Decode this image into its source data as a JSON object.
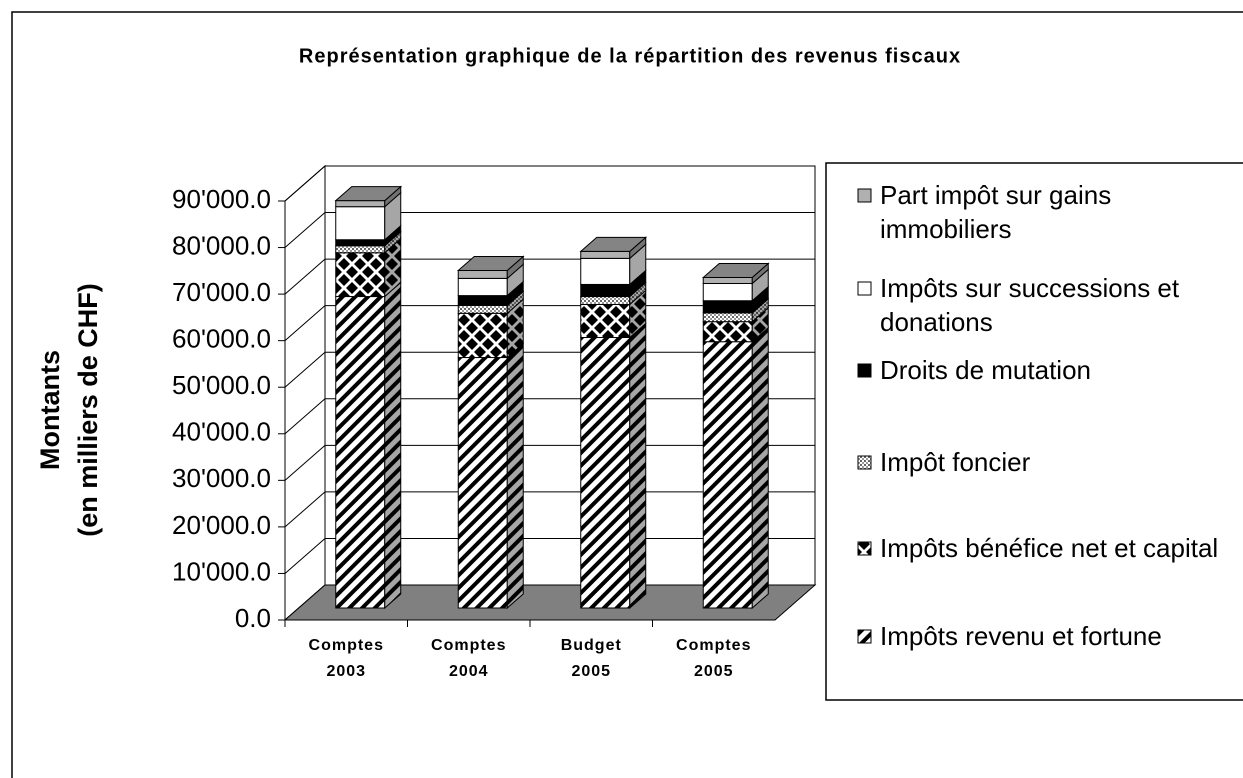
{
  "chart_data": {
    "type": "bar3d_stacked",
    "title": "Représentation graphique de la répartition des revenus fiscaux",
    "ylabel": [
      "Montants",
      "(en milliers de CHF)"
    ],
    "categories": [
      "Comptes 2003",
      "Comptes 2004",
      "Budget 2005",
      "Comptes 2005"
    ],
    "series": [
      {
        "name": "Impôts revenu et fortune",
        "color": "#000000",
        "pattern": "diagonal",
        "values": [
          66900,
          53800,
          58100,
          57200
        ]
      },
      {
        "name": "Impôts bénéfice net et capital",
        "color": "#000000",
        "pattern": "diamond",
        "values": [
          9400,
          9500,
          7100,
          4300
        ]
      },
      {
        "name": "Impôt foncier",
        "color": "#888888",
        "pattern": "dots",
        "values": [
          1500,
          1700,
          1700,
          1900
        ]
      },
      {
        "name": "Droits de mutation",
        "color": "#000000",
        "pattern": "solid",
        "values": [
          1300,
          2100,
          2600,
          2600
        ]
      },
      {
        "name": "Impôts sur successions et donations",
        "color": "#ffffff",
        "pattern": "solid",
        "values": [
          7100,
          3700,
          5600,
          3700
        ]
      },
      {
        "name": "Part impôt sur gains immobiliers",
        "color": "#b0b0b0",
        "pattern": "solid",
        "values": [
          1300,
          1700,
          1500,
          1300
        ]
      }
    ],
    "ylim": [
      0,
      90000
    ],
    "yticks": [
      {
        "value": 0,
        "label": "0.0"
      },
      {
        "value": 10000,
        "label": "10'000.0"
      },
      {
        "value": 20000,
        "label": "20'000.0"
      },
      {
        "value": 30000,
        "label": "30'000.0"
      },
      {
        "value": 40000,
        "label": "40'000.0"
      },
      {
        "value": 50000,
        "label": "50'000.0"
      },
      {
        "value": 60000,
        "label": "60'000.0"
      },
      {
        "value": 70000,
        "label": "70'000.0"
      },
      {
        "value": 80000,
        "label": "80'000.0"
      },
      {
        "value": 90000,
        "label": "90'000.0"
      }
    ],
    "grid": true,
    "legend": "right"
  }
}
